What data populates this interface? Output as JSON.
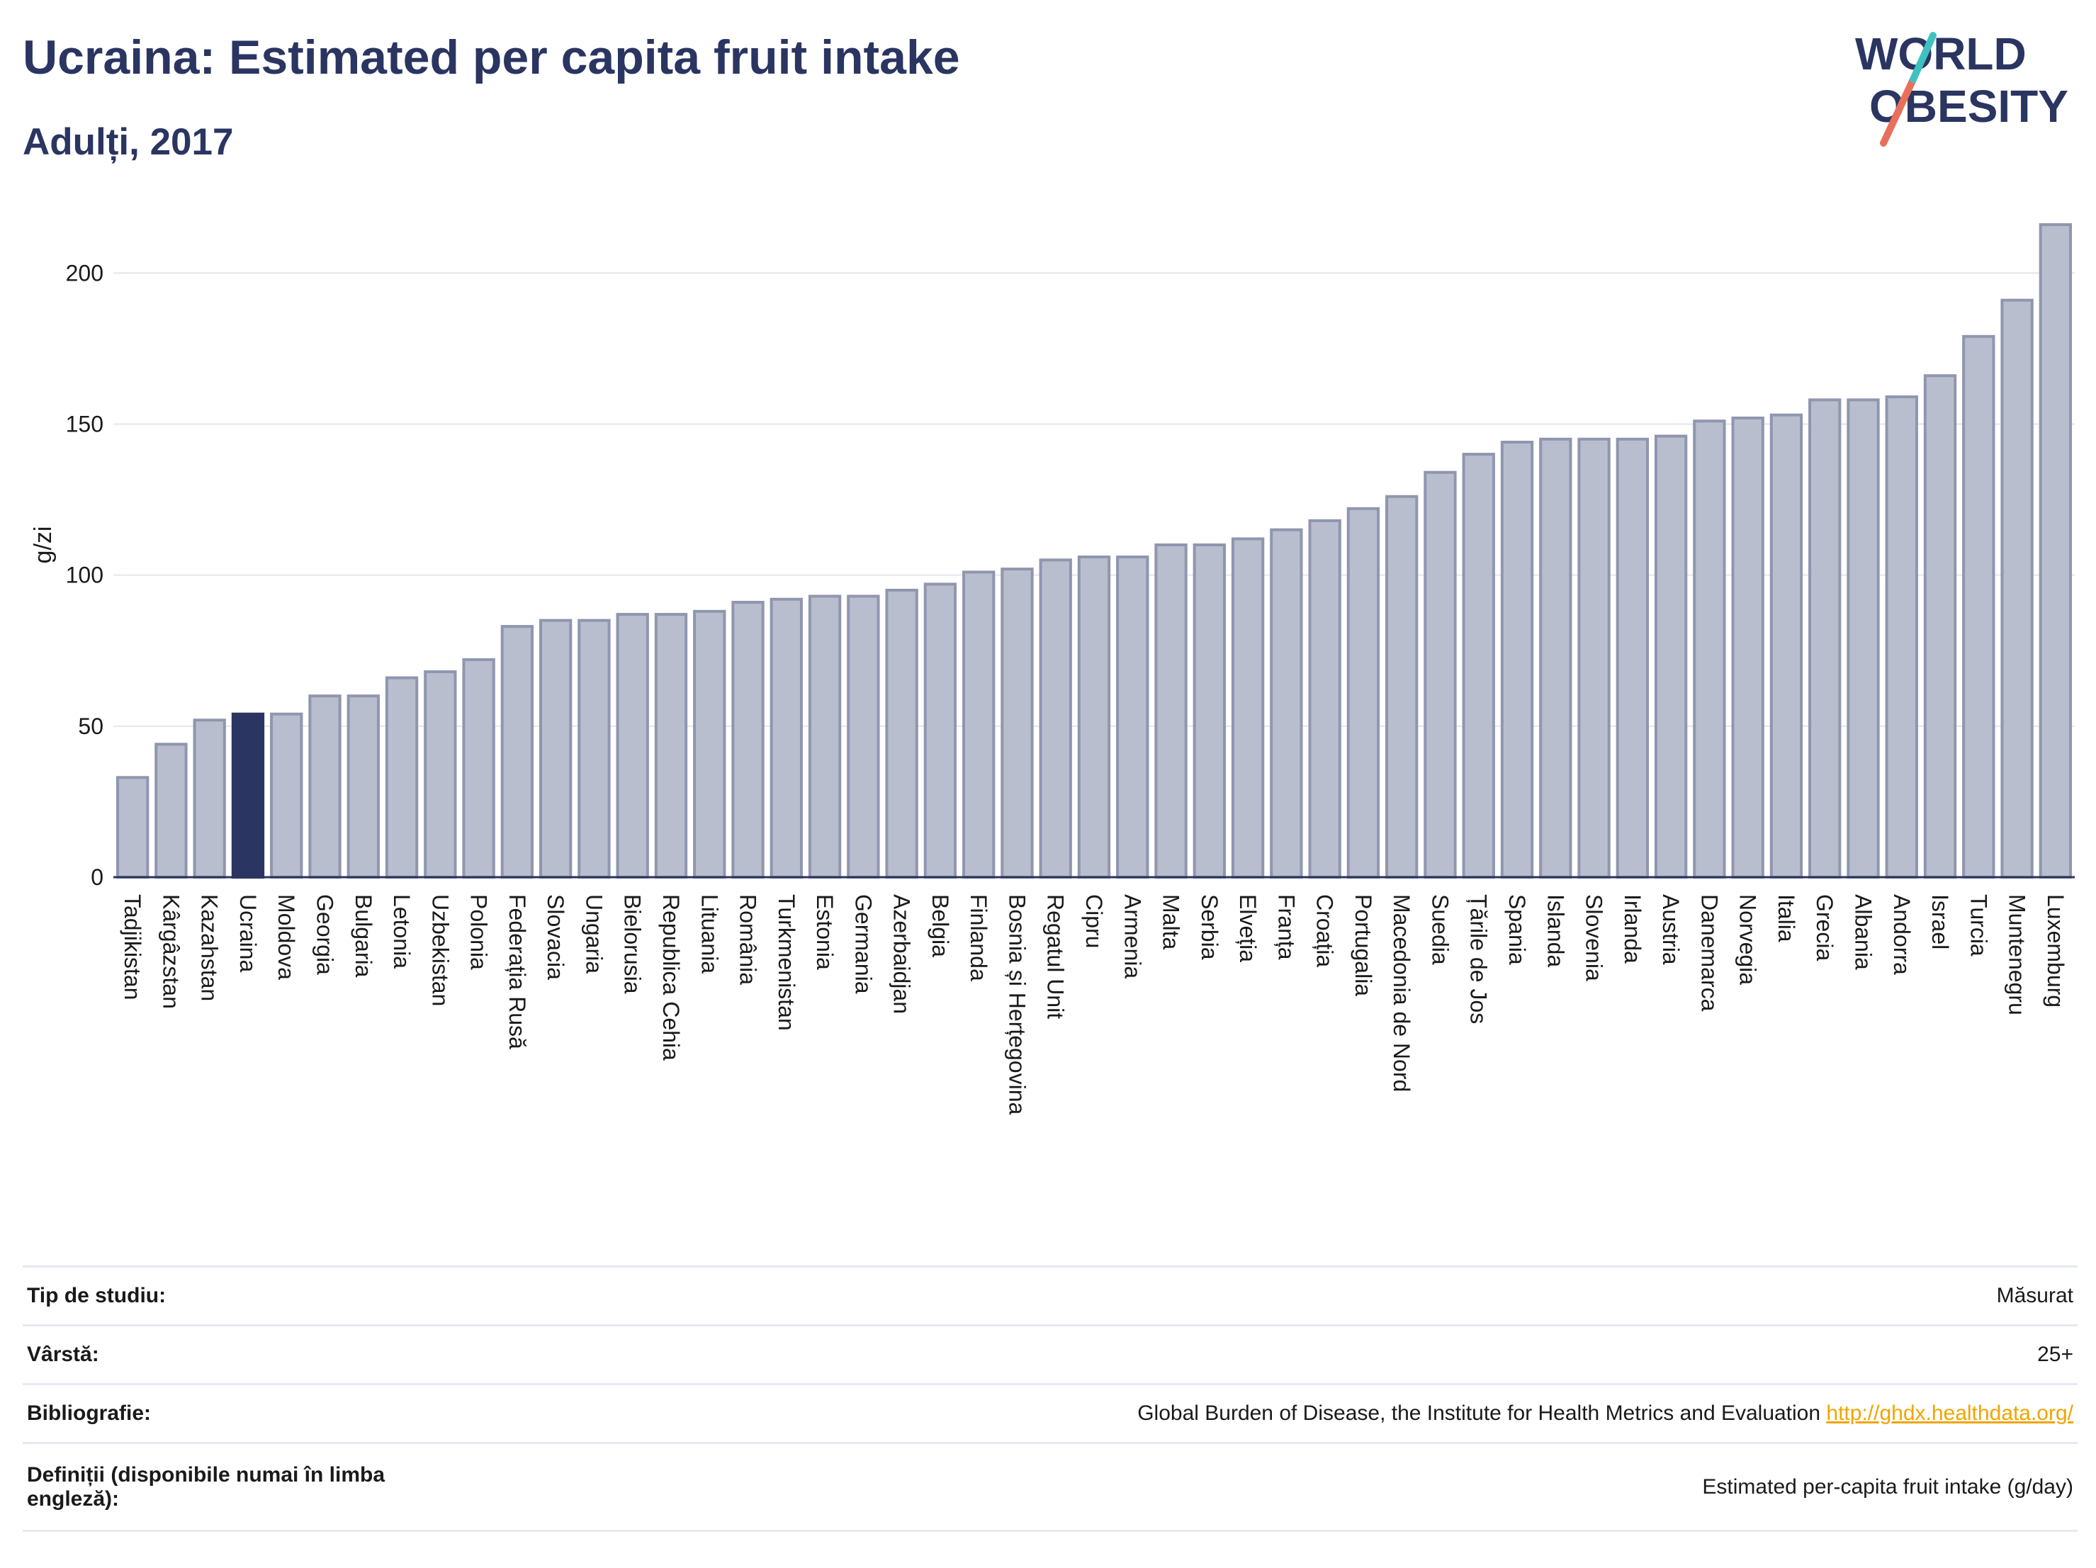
{
  "header": {
    "title": "Ucraina: Estimated per capita fruit intake",
    "subtitle": "Adulți, 2017"
  },
  "logo": {
    "line1": "WORLD",
    "line2": "OBESITY"
  },
  "colors": {
    "bar": "#b9bece",
    "bar_border": "#8f96ae",
    "highlight": "#2a3561",
    "axis": "#2a3561",
    "grid": "#e3e6ef",
    "accent_teal": "#3fc1c0",
    "accent_coral": "#e8705a"
  },
  "chart_data": {
    "type": "bar",
    "title": "Ucraina: Estimated per capita fruit intake",
    "subtitle": "Adulți, 2017",
    "ylabel": "g/zi",
    "xlabel": "",
    "ylim": [
      0,
      220
    ],
    "yticks": [
      0,
      50,
      100,
      150,
      200
    ],
    "grid": true,
    "highlight": "Ucraina",
    "categories": [
      "Tadjikistan",
      "Kârgâzstan",
      "Kazahstan",
      "Ucraina",
      "Moldova",
      "Georgia",
      "Bulgaria",
      "Letonia",
      "Uzbekistan",
      "Polonia",
      "Federația Rusă",
      "Slovacia",
      "Ungaria",
      "Bielorusia",
      "Republica Cehia",
      "Lituania",
      "România",
      "Turkmenistan",
      "Estonia",
      "Germania",
      "Azerbaidjan",
      "Belgia",
      "Finlanda",
      "Bosnia și Herțegovina",
      "Regatul Unit",
      "Cipru",
      "Armenia",
      "Malta",
      "Serbia",
      "Elveția",
      "Franța",
      "Croația",
      "Portugalia",
      "Macedonia de Nord",
      "Suedia",
      "Țările de Jos",
      "Spania",
      "Islanda",
      "Slovenia",
      "Irlanda",
      "Austria",
      "Danemarca",
      "Norvegia",
      "Italia",
      "Grecia",
      "Albania",
      "Andorra",
      "Israel",
      "Turcia",
      "Muntenegru",
      "Luxemburg"
    ],
    "values": [
      33,
      44,
      52,
      54,
      54,
      60,
      60,
      66,
      68,
      72,
      83,
      85,
      85,
      87,
      87,
      88,
      91,
      92,
      93,
      93,
      95,
      97,
      101,
      102,
      105,
      106,
      106,
      110,
      110,
      112,
      115,
      118,
      122,
      126,
      134,
      140,
      144,
      145,
      145,
      145,
      146,
      151,
      152,
      153,
      158,
      158,
      159,
      166,
      179,
      191,
      216
    ]
  },
  "meta": [
    {
      "key": "Tip de studiu:",
      "value": "Măsurat"
    },
    {
      "key": "Vârstă:",
      "value": "25+"
    },
    {
      "key": "Bibliografie:",
      "value": "Global Burden of Disease, the Institute for Health Metrics and Evaluation",
      "link": "http://ghdx.healthdata.org/"
    },
    {
      "key": "Definiții (disponibile numai în limba engleză):",
      "value": "Estimated per-capita fruit intake (g/day)"
    }
  ]
}
